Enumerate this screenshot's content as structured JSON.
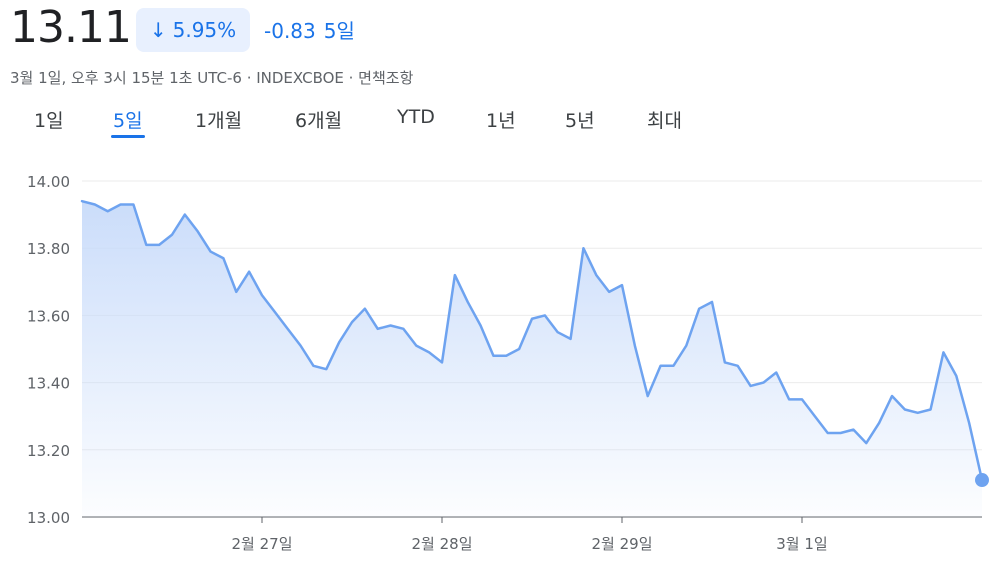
{
  "quote": {
    "price": "13.11",
    "change_pct": "5.95%",
    "change_abs": "-0.83",
    "change_period": "5일",
    "meta": "3월 1일, 오후 3시 15분 1초 UTC-6 · INDEXCBOE · 면책조항"
  },
  "tabs": [
    {
      "label": "1일",
      "active": false
    },
    {
      "label": "5일",
      "active": true
    },
    {
      "label": "1개월",
      "active": false
    },
    {
      "label": "6개월",
      "active": false
    },
    {
      "label": "YTD",
      "active": false
    },
    {
      "label": "1년",
      "active": false
    },
    {
      "label": "5년",
      "active": false
    },
    {
      "label": "최대",
      "active": false
    }
  ],
  "colors": {
    "accent": "#1a73e8",
    "line": "#6ea3f0",
    "fill_top": "#c8dbfa",
    "grid": "#ebebeb"
  },
  "icons": {
    "change_direction": "arrow-down-icon"
  },
  "chart_data": {
    "type": "area",
    "ylim": [
      13.0,
      14.0
    ],
    "yticks": [
      "13.00",
      "13.20",
      "13.40",
      "13.60",
      "13.80",
      "14.00"
    ],
    "xticks": [
      {
        "label": "2월 27일",
        "index": 14
      },
      {
        "label": "2월 28일",
        "index": 28
      },
      {
        "label": "2월 29일",
        "index": 42
      },
      {
        "label": "3월 1일",
        "index": 56
      }
    ],
    "values": [
      13.94,
      13.93,
      13.91,
      13.93,
      13.93,
      13.81,
      13.81,
      13.84,
      13.9,
      13.85,
      13.79,
      13.77,
      13.67,
      13.73,
      13.66,
      13.61,
      13.56,
      13.51,
      13.45,
      13.44,
      13.52,
      13.58,
      13.62,
      13.56,
      13.57,
      13.56,
      13.51,
      13.49,
      13.46,
      13.72,
      13.64,
      13.57,
      13.48,
      13.48,
      13.5,
      13.59,
      13.6,
      13.55,
      13.53,
      13.8,
      13.72,
      13.67,
      13.69,
      13.51,
      13.36,
      13.45,
      13.45,
      13.51,
      13.62,
      13.64,
      13.46,
      13.45,
      13.39,
      13.4,
      13.43,
      13.35,
      13.35,
      13.3,
      13.25,
      13.25,
      13.26,
      13.22,
      13.28,
      13.36,
      13.32,
      13.31,
      13.32,
      13.49,
      13.42,
      13.28,
      13.11
    ],
    "last_point_marker": true,
    "grid": true
  }
}
